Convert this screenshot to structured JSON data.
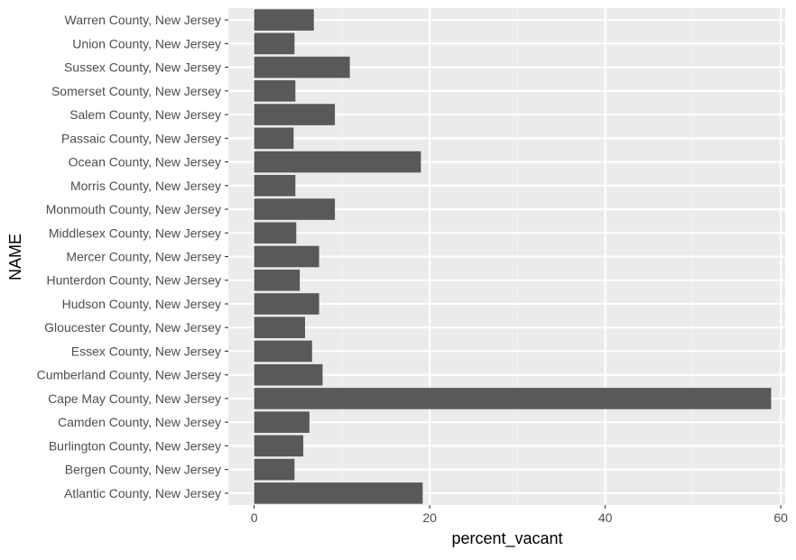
{
  "chart_data": {
    "type": "bar",
    "orientation": "horizontal",
    "xlabel": "percent_vacant",
    "ylabel": "NAME",
    "xlim": [
      -2.94,
      60.5
    ],
    "x_ticks": [
      0,
      20,
      40,
      60
    ],
    "grid": true,
    "colors": {
      "bar": "#595959",
      "panel": "#ebebeb",
      "grid_major": "#ffffff",
      "grid_minor": "#f3f3f3",
      "tick_label": "#4d4d4d",
      "axis_title": "#000000"
    },
    "categories": [
      "Atlantic County, New Jersey",
      "Bergen County, New Jersey",
      "Burlington County, New Jersey",
      "Camden County, New Jersey",
      "Cape May County, New Jersey",
      "Cumberland County, New Jersey",
      "Essex County, New Jersey",
      "Gloucester County, New Jersey",
      "Hudson County, New Jersey",
      "Hunterdon County, New Jersey",
      "Mercer County, New Jersey",
      "Middlesex County, New Jersey",
      "Monmouth County, New Jersey",
      "Morris County, New Jersey",
      "Ocean County, New Jersey",
      "Passaic County, New Jersey",
      "Salem County, New Jersey",
      "Somerset County, New Jersey",
      "Sussex County, New Jersey",
      "Union County, New Jersey",
      "Warren County, New Jersey"
    ],
    "values": [
      19.2,
      4.6,
      5.6,
      6.3,
      58.9,
      7.8,
      6.6,
      5.8,
      7.4,
      5.2,
      7.4,
      4.8,
      9.2,
      4.7,
      19.0,
      4.5,
      9.2,
      4.7,
      10.9,
      4.6,
      6.8
    ]
  }
}
